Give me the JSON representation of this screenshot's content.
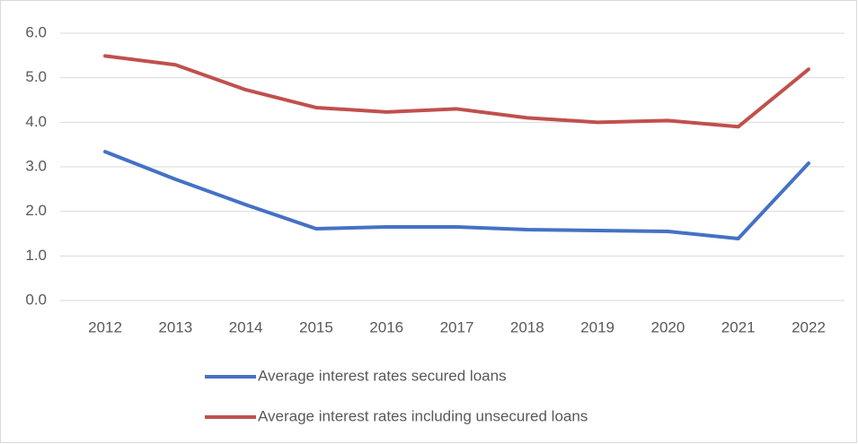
{
  "chart_data": {
    "type": "line",
    "categories": [
      "2012",
      "2013",
      "2014",
      "2015",
      "2016",
      "2017",
      "2018",
      "2019",
      "2020",
      "2021",
      "2022"
    ],
    "series": [
      {
        "name": "Average interest rates secured loans",
        "color": "#4472c4",
        "values": [
          3.34,
          2.72,
          2.15,
          1.61,
          1.65,
          1.65,
          1.59,
          1.57,
          1.55,
          1.39,
          3.08
        ]
      },
      {
        "name": "Average interest rates including unsecured loans",
        "color": "#c0504d",
        "values": [
          5.49,
          5.29,
          4.73,
          4.33,
          4.23,
          4.3,
          4.1,
          4.0,
          4.04,
          3.9,
          5.19
        ]
      }
    ],
    "ylim": [
      0,
      6
    ],
    "yticks": [
      {
        "value": 0,
        "label": "0.0"
      },
      {
        "value": 1,
        "label": "1.0"
      },
      {
        "value": 2,
        "label": "2.0"
      },
      {
        "value": 3,
        "label": "3.0"
      },
      {
        "value": 4,
        "label": "4.0"
      },
      {
        "value": 5,
        "label": "5.0"
      },
      {
        "value": 6,
        "label": "6.0"
      }
    ],
    "grid": true,
    "legend": "bottom"
  }
}
